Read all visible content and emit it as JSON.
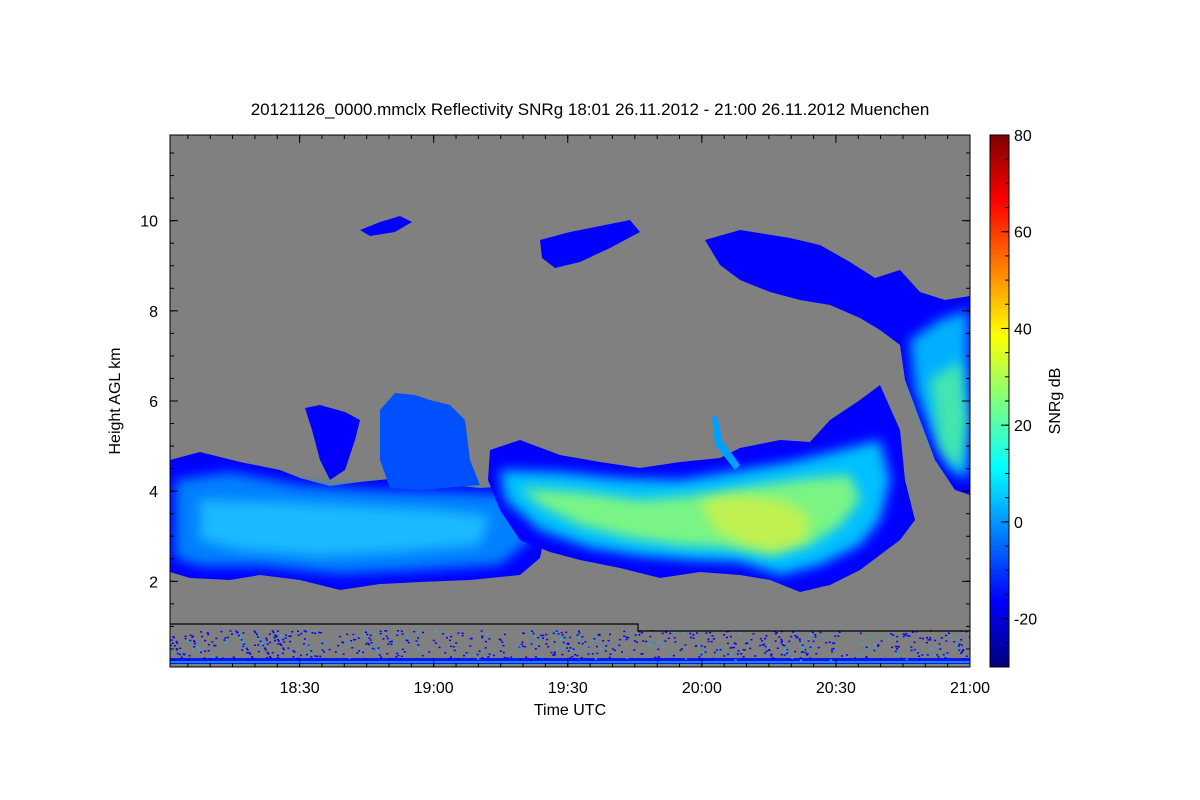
{
  "chart_data": {
    "type": "heatmap",
    "title": "20121126_0000.mmclx Reflectivity SNRg   18:01 26.11.2012 - 21:00 26.11.2012 Muenchen",
    "xlabel": "Time UTC",
    "ylabel": "Height AGL km",
    "colorbar_label": "SNRg dB",
    "x_range": [
      "18:01",
      "21:00"
    ],
    "x_ticks": [
      "18:30",
      "19:00",
      "19:30",
      "20:00",
      "20:30",
      "21:00"
    ],
    "y_range": [
      0.1,
      11.9
    ],
    "y_ticks": [
      2,
      4,
      6,
      8,
      10
    ],
    "colorbar_range": [
      -30,
      80
    ],
    "colorbar_ticks": [
      -20,
      0,
      20,
      40,
      60,
      80
    ],
    "colormap": [
      "#00007f",
      "#0000ff",
      "#007fff",
      "#00ffff",
      "#7fff7f",
      "#ffff00",
      "#ff7f00",
      "#ff0000",
      "#7f0000"
    ],
    "background_color": "#808080",
    "cloud_bands": [
      {
        "name": "main-layer-left",
        "x": [
          "18:01",
          "19:25"
        ],
        "y_bottom_km": 2.2,
        "y_top_km": 4.6,
        "snr_db": 8
      },
      {
        "name": "main-layer-center",
        "x": [
          "19:15",
          "20:45"
        ],
        "y_bottom_km": 2.0,
        "y_top_km": 5.0,
        "snr_db": 28
      },
      {
        "name": "upper-layer-right",
        "x": [
          "20:00",
          "21:00"
        ],
        "y_bottom_km": 4.0,
        "y_top_km": 9.8,
        "snr_db": 15
      }
    ],
    "boundary_line_km": [
      {
        "x": [
          "18:01",
          "19:46"
        ],
        "y": 1.15
      },
      {
        "x": [
          "19:46",
          "21:00"
        ],
        "y": 1.0
      }
    ]
  }
}
